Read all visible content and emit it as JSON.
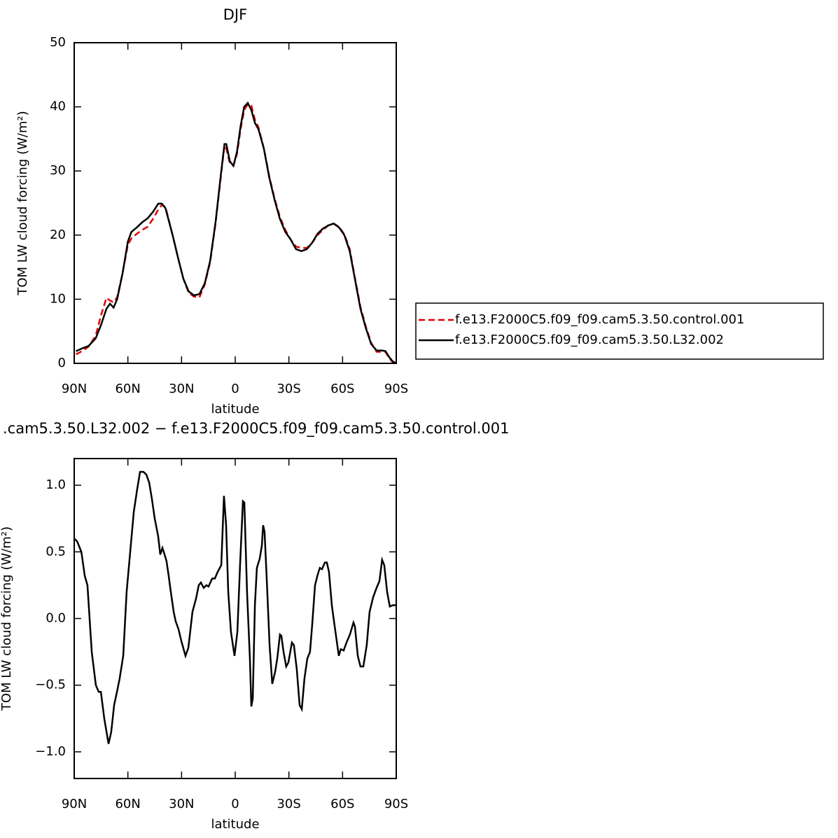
{
  "chart_data": [
    {
      "type": "line",
      "title": "DJF",
      "xlabel": "latitude",
      "ylabel": "TOM LW cloud forcing (W/m²)",
      "x": [
        89,
        85,
        82,
        78,
        75,
        72,
        70,
        68,
        66,
        63,
        60,
        58,
        55,
        52,
        49,
        46,
        43,
        41,
        39,
        35,
        32,
        29,
        26,
        23,
        20,
        17,
        14,
        11,
        8,
        6,
        5,
        3,
        1,
        -1,
        -3,
        -5,
        -7,
        -9,
        -11,
        -13,
        -16,
        -19,
        -22,
        -25,
        -28,
        -31,
        -34,
        -37,
        -40,
        -43,
        -46,
        -49,
        -52,
        -55,
        -58,
        -61,
        -64,
        -67,
        -70,
        -73,
        -76,
        -79,
        -82,
        -84,
        -86,
        -88,
        -90
      ],
      "series": [
        {
          "name": "f.e13.F2000C5.f09_f09.cam5.3.50.control.001",
          "color": "#e00000",
          "linestyle": "dashed",
          "values": [
            1.4,
            2,
            2.6,
            4.3,
            7.5,
            10.2,
            9.8,
            9.5,
            10.3,
            14,
            18.5,
            19.5,
            20.2,
            20.8,
            21.3,
            22.5,
            24,
            24.7,
            24.4,
            20,
            16.5,
            13.2,
            11,
            10.4,
            10.3,
            12.3,
            15.8,
            21.8,
            29.2,
            34,
            33.5,
            31.2,
            30.8,
            32.7,
            36.5,
            39.5,
            40.4,
            40.2,
            38,
            36.8,
            33.5,
            29.2,
            25.7,
            22.8,
            20.8,
            19.3,
            18.2,
            18,
            18,
            18.8,
            20,
            20.8,
            21.5,
            21.8,
            21.3,
            20.1,
            17.8,
            13.2,
            8.8,
            5.7,
            3.2,
            1.8,
            1.8,
            1.8,
            0.8,
            0.2,
            0
          ]
        },
        {
          "name": "f.e13.F2000C5.f09_f09.cam5.3.50.L32.002",
          "color": "#000000",
          "linestyle": "solid",
          "values": [
            1.9,
            2.4,
            2.7,
            3.9,
            6,
            8.5,
            9.3,
            8.7,
            10,
            14,
            19,
            20.5,
            21.2,
            22,
            22.6,
            23.6,
            24.9,
            24.9,
            24.2,
            20,
            16.5,
            13.2,
            11.2,
            10.6,
            10.8,
            12.5,
            16,
            22,
            29.5,
            34.2,
            34.2,
            31.5,
            30.8,
            33,
            37,
            40,
            40.6,
            39.5,
            37.5,
            36.5,
            33.5,
            29,
            25.5,
            22.5,
            20.5,
            19.3,
            17.8,
            17.5,
            17.8,
            18.8,
            20.2,
            21,
            21.5,
            21.8,
            21.2,
            20,
            17.5,
            13,
            8.5,
            5.5,
            3,
            2,
            2,
            1.9,
            1,
            0.3,
            0
          ]
        }
      ],
      "xlim": [
        90,
        -90
      ],
      "xticks": [
        {
          "value": 90,
          "label": "90N"
        },
        {
          "value": 60,
          "label": "60N"
        },
        {
          "value": 30,
          "label": "30N"
        },
        0,
        {
          "value": -30,
          "label": "30S"
        },
        {
          "value": -60,
          "label": "60S"
        },
        {
          "value": -90,
          "label": "90S"
        }
      ],
      "ylim": [
        0,
        50
      ],
      "yticks": [
        0,
        10,
        20,
        30,
        40,
        50
      ],
      "legend": "right"
    },
    {
      "type": "line",
      "title": ".cam5.3.50.L32.002 − f.e13.F2000C5.f09_f09.cam5.3.50.control.001",
      "xlabel": "latitude",
      "ylabel": "TOM LW cloud forcing (W/m²)",
      "x": [
        90,
        88.4,
        86,
        84.1,
        82.6,
        80.2,
        77.9,
        76.3,
        75.1,
        73.2,
        70.8,
        69.3,
        67.7,
        66.1,
        64.6,
        62.6,
        60.7,
        58.7,
        56.7,
        54.8,
        53.2,
        51.3,
        49.7,
        48.1,
        46.6,
        45,
        43.1,
        41.9,
        40.7,
        39.5,
        38.4,
        37.2,
        36,
        34.4,
        33.3,
        31.7,
        30.1,
        27.8,
        26.2,
        23.9,
        21.9,
        20.4,
        19.2,
        17.6,
        16.1,
        14.9,
        12.9,
        11.4,
        9.8,
        7.8,
        6.3,
        5.1,
        3.9,
        2.4,
        0.4,
        -1.2,
        -2.7,
        -4.3,
        -5.1,
        -6.6,
        -8.2,
        -9,
        -9.8,
        -11,
        -12.1,
        -13.7,
        -14.9,
        -15.6,
        -16.4,
        -17.6,
        -19.2,
        -20.7,
        -22.3,
        -23.5,
        -25,
        -25.8,
        -27,
        -28.5,
        -29.7,
        -31.7,
        -32.8,
        -34.4,
        -36,
        -37.2,
        -38.7,
        -40.3,
        -41.8,
        -43,
        -44.6,
        -46.1,
        -47.3,
        -48.5,
        -50.1,
        -51.2,
        -52.4,
        -54,
        -55.5,
        -57.9,
        -59,
        -60.6,
        -62.2,
        -64.1,
        -66.1,
        -66.9,
        -68.5,
        -70,
        -71.6,
        -73.5,
        -75.1,
        -77.1,
        -79,
        -80.6,
        -82.1,
        -83.3,
        -84.9,
        -86.4,
        -88,
        -90
      ],
      "series": [
        {
          "color": "#000000",
          "linestyle": "solid",
          "values": [
            0.6,
            0.58,
            0.5,
            0.32,
            0.25,
            -0.25,
            -0.5,
            -0.55,
            -0.55,
            -0.75,
            -0.94,
            -0.85,
            -0.65,
            -0.55,
            -0.45,
            -0.28,
            0.2,
            0.5,
            0.8,
            0.97,
            1.1,
            1.1,
            1.08,
            1.02,
            0.9,
            0.75,
            0.62,
            0.48,
            0.53,
            0.48,
            0.43,
            0.32,
            0.2,
            0.05,
            -0.02,
            -0.08,
            -0.17,
            -0.28,
            -0.22,
            0.05,
            0.15,
            0.25,
            0.27,
            0.23,
            0.25,
            0.24,
            0.3,
            0.3,
            0.35,
            0.4,
            0.92,
            0.7,
            0.2,
            -0.1,
            -0.28,
            -0.1,
            0.4,
            0.88,
            0.87,
            0.2,
            -0.3,
            -0.66,
            -0.6,
            0.1,
            0.38,
            0.45,
            0.55,
            0.7,
            0.65,
            0.3,
            -0.2,
            -0.49,
            -0.4,
            -0.3,
            -0.12,
            -0.13,
            -0.25,
            -0.36,
            -0.33,
            -0.18,
            -0.2,
            -0.38,
            -0.65,
            -0.68,
            -0.45,
            -0.3,
            -0.25,
            -0.05,
            0.25,
            0.33,
            0.38,
            0.37,
            0.42,
            0.42,
            0.35,
            0.1,
            -0.05,
            -0.28,
            -0.23,
            -0.24,
            -0.18,
            -0.12,
            -0.03,
            -0.06,
            -0.28,
            -0.36,
            -0.36,
            -0.2,
            0.05,
            0.16,
            0.23,
            0.28,
            0.44,
            0.4,
            0.2,
            0.09,
            0.1,
            0.1
          ]
        }
      ],
      "xlim": [
        90,
        -90
      ],
      "xticks": [
        {
          "value": 90,
          "label": "90N"
        },
        {
          "value": 60,
          "label": "60N"
        },
        {
          "value": 30,
          "label": "30N"
        },
        0,
        {
          "value": -30,
          "label": "30S"
        },
        {
          "value": -60,
          "label": "60S"
        },
        {
          "value": -90,
          "label": "90S"
        }
      ],
      "ylim": [
        -1.2,
        1.2
      ],
      "yticks": [
        {
          "value": -1,
          "label": "−1.0"
        },
        {
          "value": -0.5,
          "label": "−0.5"
        },
        {
          "value": 0,
          "label": "0.0"
        },
        {
          "value": 0.5,
          "label": "0.5"
        },
        {
          "value": 1,
          "label": "1.0"
        }
      ]
    }
  ]
}
